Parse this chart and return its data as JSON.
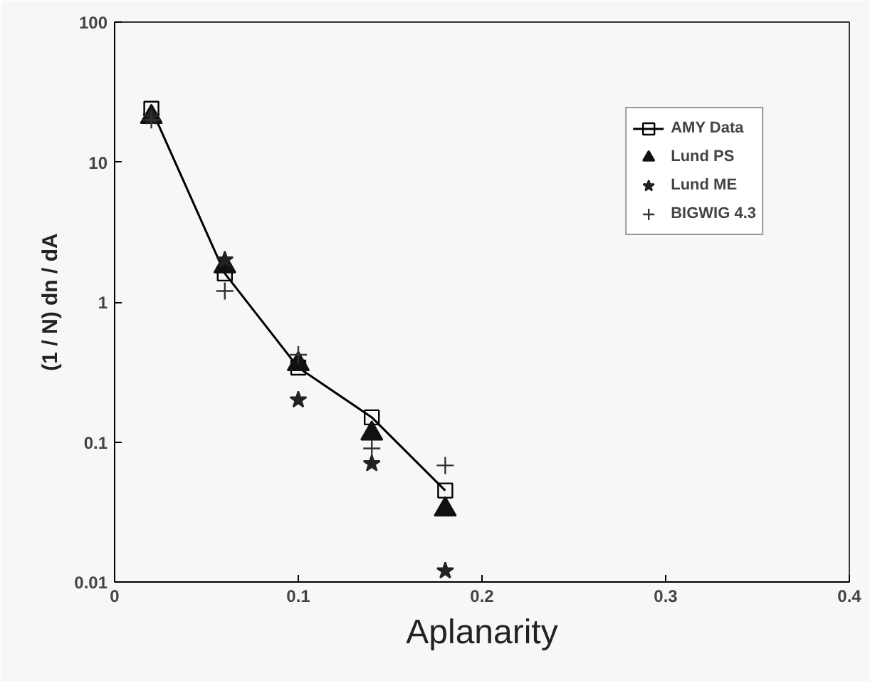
{
  "chart_data": {
    "type": "scatter",
    "xlabel": "Aplanarity",
    "ylabel": "(1 / N) dn / dA",
    "log": "y",
    "xlim": [
      0,
      0.4
    ],
    "ylim": [
      0.01,
      100
    ],
    "xticks": [
      0,
      0.1,
      0.2,
      0.3,
      0.4
    ],
    "yticks": [
      0.01,
      0.1,
      1,
      10,
      100
    ],
    "legend": "top right",
    "grid": false,
    "x": [
      0.02,
      0.06,
      0.1,
      0.14,
      0.18
    ],
    "series": [
      {
        "name": "AMY Data",
        "type": "line",
        "marker": "square",
        "color": "#000000",
        "values": [
          24,
          1.6,
          0.34,
          0.15,
          0.045
        ]
      },
      {
        "name": "Lund PS",
        "marker": "triangle",
        "color": "#111111",
        "values": [
          21,
          1.8,
          0.36,
          0.115,
          0.033
        ]
      },
      {
        "name": "Lund ME",
        "marker": "star",
        "color": "#222222",
        "values": [
          21,
          2.0,
          0.2,
          0.07,
          0.012
        ]
      },
      {
        "name": "BIGWIG 4.3",
        "marker": "cross",
        "color": "#333333",
        "values": [
          20,
          1.2,
          0.42,
          0.09,
          0.068
        ]
      }
    ]
  }
}
